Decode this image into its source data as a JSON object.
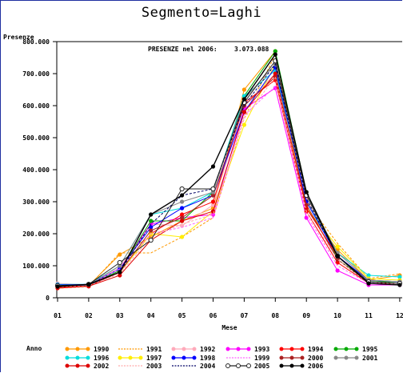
{
  "chart_data": {
    "type": "line",
    "title": "Segmento=Laghi",
    "ylabel": "Presenze",
    "xlabel": "Mese",
    "annotation_label": "PRESENZE nel 2006:",
    "annotation_value": "3.073.088",
    "legend_title": "Anno",
    "legend_placement": "bottom",
    "grid": false,
    "ylim": [
      0,
      800000
    ],
    "y_ticks": [
      0,
      100000,
      200000,
      300000,
      400000,
      500000,
      600000,
      700000,
      800000
    ],
    "y_tick_labels": [
      "0",
      "100.000",
      "200.000",
      "300.000",
      "400.000",
      "500.000",
      "600.000",
      "700.000",
      "800.000"
    ],
    "categories": [
      "01",
      "02",
      "03",
      "04",
      "05",
      "06",
      "07",
      "08",
      "09",
      "10",
      "11",
      "12"
    ],
    "series": [
      {
        "name": "1990",
        "color": "#ff9900",
        "style": "solid-marker",
        "values": [
          32000,
          38000,
          135000,
          190000,
          240000,
          280000,
          650000,
          770000,
          280000,
          150000,
          55000,
          70000
        ]
      },
      {
        "name": "1991",
        "color": "#ff9900",
        "style": "dashed",
        "values": [
          30000,
          35000,
          140000,
          140000,
          190000,
          250000,
          560000,
          760000,
          300000,
          170000,
          60000,
          75000
        ]
      },
      {
        "name": "1992",
        "color": "#ffaabb",
        "style": "solid-marker",
        "values": [
          45000,
          40000,
          95000,
          230000,
          225000,
          290000,
          600000,
          700000,
          310000,
          130000,
          50000,
          50000
        ]
      },
      {
        "name": "1993",
        "color": "#ff00ff",
        "style": "solid-marker",
        "values": [
          40000,
          40000,
          90000,
          230000,
          250000,
          260000,
          590000,
          655000,
          250000,
          85000,
          40000,
          40000
        ]
      },
      {
        "name": "1994",
        "color": "#ff0000",
        "style": "solid-marker",
        "values": [
          33000,
          36000,
          80000,
          200000,
          260000,
          300000,
          610000,
          680000,
          270000,
          110000,
          45000,
          45000
        ]
      },
      {
        "name": "1995",
        "color": "#00aa00",
        "style": "solid-marker",
        "values": [
          37000,
          40000,
          85000,
          240000,
          240000,
          330000,
          630000,
          770000,
          330000,
          120000,
          50000,
          50000
        ]
      },
      {
        "name": "1996",
        "color": "#00dddd",
        "style": "solid-marker",
        "values": [
          42000,
          42000,
          100000,
          260000,
          280000,
          330000,
          630000,
          710000,
          300000,
          140000,
          70000,
          65000
        ]
      },
      {
        "name": "1997",
        "color": "#ffee00",
        "style": "solid-marker",
        "values": [
          38000,
          39000,
          80000,
          200000,
          190000,
          270000,
          540000,
          730000,
          280000,
          160000,
          60000,
          55000
        ]
      },
      {
        "name": "1998",
        "color": "#0000ff",
        "style": "solid-marker",
        "values": [
          40000,
          42000,
          90000,
          220000,
          280000,
          320000,
          580000,
          720000,
          300000,
          130000,
          55000,
          50000
        ]
      },
      {
        "name": "1999",
        "color": "#ff66ff",
        "style": "dashed",
        "values": [
          35000,
          40000,
          90000,
          200000,
          220000,
          250000,
          570000,
          660000,
          260000,
          100000,
          45000,
          45000
        ]
      },
      {
        "name": "2000",
        "color": "#aa2222",
        "style": "solid-marker",
        "values": [
          36000,
          38000,
          80000,
          210000,
          250000,
          320000,
          600000,
          690000,
          290000,
          120000,
          45000,
          45000
        ]
      },
      {
        "name": "2001",
        "color": "#888888",
        "style": "solid-marker",
        "values": [
          38000,
          40000,
          100000,
          260000,
          300000,
          330000,
          620000,
          730000,
          320000,
          140000,
          55000,
          50000
        ]
      },
      {
        "name": "2002",
        "color": "#dd0000",
        "style": "solid-marker",
        "values": [
          30000,
          36000,
          70000,
          180000,
          240000,
          270000,
          580000,
          700000,
          280000,
          130000,
          45000,
          45000
        ]
      },
      {
        "name": "2003",
        "color": "#ffaaaa",
        "style": "dashed",
        "values": [
          34000,
          38000,
          75000,
          190000,
          230000,
          260000,
          560000,
          690000,
          270000,
          120000,
          45000,
          45000
        ]
      },
      {
        "name": "2004",
        "color": "#000066",
        "style": "dashed",
        "values": [
          36000,
          40000,
          80000,
          230000,
          320000,
          340000,
          600000,
          730000,
          310000,
          130000,
          50000,
          45000
        ]
      },
      {
        "name": "2005",
        "color": "#222222",
        "style": "open-marker",
        "values": [
          38000,
          42000,
          110000,
          180000,
          340000,
          340000,
          610000,
          740000,
          320000,
          130000,
          50000,
          45000
        ]
      },
      {
        "name": "2006",
        "color": "#000000",
        "style": "solid-marker",
        "values": [
          35000,
          42000,
          80000,
          260000,
          320000,
          410000,
          620000,
          760000,
          330000,
          130000,
          45000,
          40000
        ]
      }
    ]
  }
}
